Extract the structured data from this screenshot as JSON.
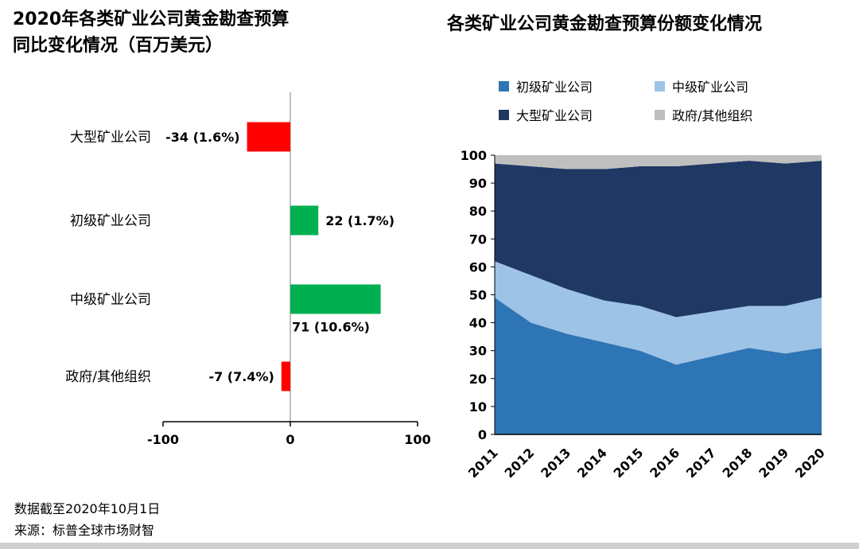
{
  "page": {
    "footer_line1": "数据截至2020年10月1日",
    "footer_line2": "来源：标普全球市场财智"
  },
  "chart_data": [
    {
      "type": "bar",
      "orientation": "horizontal",
      "title_lines": [
        "2020年各类矿业公司黄金勘查预算",
        "同比变化情况（百万美元）"
      ],
      "categories": [
        "大型矿业公司",
        "初级矿业公司",
        "中级矿业公司",
        "政府/其他组织"
      ],
      "values": [
        -34,
        22,
        71,
        -7
      ],
      "value_labels": [
        "-34 (1.6%)",
        "22 (1.7%)",
        "71 (10.6%)",
        "-7 (7.4%)"
      ],
      "label_positions": [
        "left",
        "right",
        "below",
        "left"
      ],
      "xlim": [
        -100,
        100
      ],
      "x_ticks": [
        -100,
        0,
        100
      ],
      "positive_color": "#00B050",
      "negative_color": "#FF0000",
      "grid": false
    },
    {
      "type": "area",
      "stacked": true,
      "title": "各类矿业公司黄金勘查预算份额变化情况",
      "x": [
        2011,
        2012,
        2013,
        2014,
        2015,
        2016,
        2017,
        2018,
        2019,
        2020
      ],
      "series": [
        {
          "name": "初级矿业公司",
          "color": "#2E75B6",
          "values": [
            49,
            40,
            36,
            33,
            30,
            25,
            28,
            31,
            29,
            31
          ]
        },
        {
          "name": "中级矿业公司",
          "color": "#9DC3E6",
          "values": [
            13,
            17,
            16,
            15,
            16,
            17,
            16,
            15,
            17,
            18
          ]
        },
        {
          "name": "大型矿业公司",
          "color": "#1F3864",
          "values": [
            35,
            39,
            43,
            47,
            50,
            54,
            53,
            52,
            51,
            49
          ]
        },
        {
          "name": "政府/其他组织",
          "color": "#BFBFBF",
          "values": [
            3,
            4,
            5,
            5,
            4,
            4,
            3,
            2,
            3,
            2
          ]
        }
      ],
      "ylim": [
        0,
        100
      ],
      "y_ticks": [
        0,
        10,
        20,
        30,
        40,
        50,
        60,
        70,
        80,
        90,
        100
      ],
      "legend_position": "top",
      "grid": false
    }
  ]
}
